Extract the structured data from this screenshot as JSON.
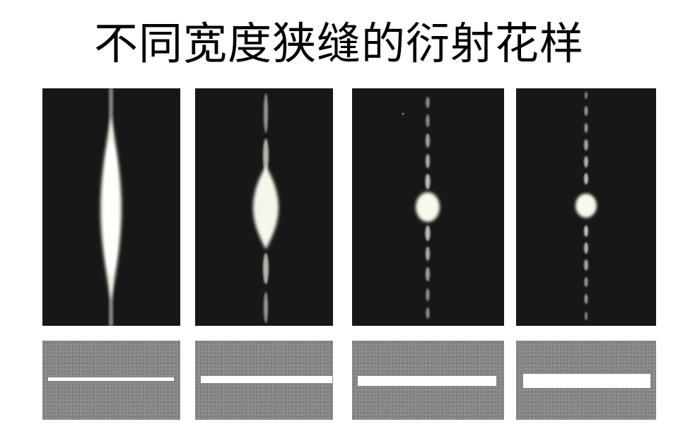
{
  "title": "不同宽度狭缝的衍射花样",
  "panels": [
    {
      "slit": "narrowest"
    },
    {
      "slit": "narrow"
    },
    {
      "slit": "wide"
    },
    {
      "slit": "widest"
    }
  ]
}
